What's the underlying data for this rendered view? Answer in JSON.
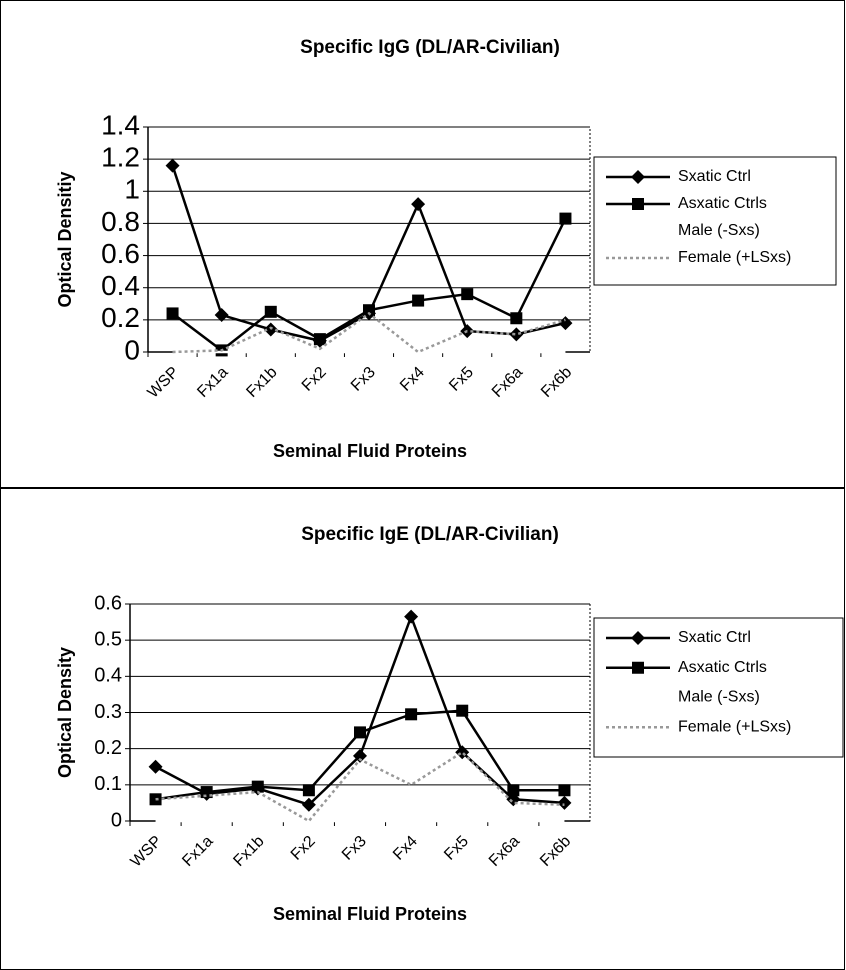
{
  "chart_data": [
    {
      "type": "line",
      "title": "Specific IgG (DL/AR-Civilian)",
      "x_label": "Seminal Fluid Proteins",
      "y_label": "Optical Densitiy",
      "categories": [
        "WSP",
        "Fx1a",
        "Fx1b",
        "Fx2",
        "Fx3",
        "Fx4",
        "Fx5",
        "Fx6a",
        "Fx6b"
      ],
      "ylim": [
        0,
        1.4
      ],
      "yticks": [
        0,
        0.2,
        0.4,
        0.6,
        0.8,
        1,
        1.2,
        1.4
      ],
      "grid": true,
      "legend": "right",
      "series": [
        {
          "name": "Sxatic Ctrl",
          "color": "#000000",
          "marker": "diamond",
          "values": [
            1.16,
            0.23,
            0.14,
            0.07,
            0.24,
            0.92,
            0.13,
            0.11,
            0.18
          ]
        },
        {
          "name": "Asxatic Ctrls",
          "color": "#000000",
          "marker": "square",
          "values": [
            0.24,
            0.01,
            0.25,
            0.08,
            0.26,
            0.32,
            0.36,
            0.21,
            0.83
          ]
        },
        {
          "name": "Male (-Sxs)",
          "color": "#ffffff",
          "marker": "none",
          "values": [
            0,
            0,
            0,
            0,
            0,
            0,
            0,
            0,
            0
          ]
        },
        {
          "name": "Female (+LSxs)",
          "color": "#999999",
          "marker": "dashed",
          "values": [
            0,
            0.01,
            0.15,
            0.02,
            0.24,
            0,
            0.13,
            0.11,
            0.2
          ]
        }
      ]
    },
    {
      "type": "line",
      "title": "Specific IgE (DL/AR-Civilian)",
      "x_label": "Seminal Fluid Proteins",
      "y_label": "Optical Density",
      "categories": [
        "WSP",
        "Fx1a",
        "Fx1b",
        "Fx2",
        "Fx3",
        "Fx4",
        "Fx5",
        "Fx6a",
        "Fx6b"
      ],
      "ylim": [
        0,
        0.6
      ],
      "yticks": [
        0,
        0.1,
        0.2,
        0.3,
        0.4,
        0.5,
        0.6
      ],
      "grid": true,
      "legend": "right",
      "series": [
        {
          "name": "Sxatic Ctrl",
          "color": "#000000",
          "marker": "diamond",
          "values": [
            0.15,
            0.075,
            0.09,
            0.045,
            0.18,
            0.565,
            0.19,
            0.06,
            0.05
          ]
        },
        {
          "name": "Asxatic Ctrls",
          "color": "#000000",
          "marker": "square",
          "values": [
            0.06,
            0.08,
            0.095,
            0.085,
            0.245,
            0.295,
            0.305,
            0.085,
            0.085
          ]
        },
        {
          "name": "Male (-Sxs)",
          "color": "#ffffff",
          "marker": "none",
          "values": [
            0,
            0,
            0,
            0,
            0,
            0,
            0,
            0,
            0
          ]
        },
        {
          "name": "Female (+LSxs)",
          "color": "#999999",
          "marker": "dashed",
          "values": [
            0.06,
            0.07,
            0.08,
            0,
            0.17,
            0.1,
            0.19,
            0.05,
            0.045
          ]
        }
      ]
    }
  ]
}
